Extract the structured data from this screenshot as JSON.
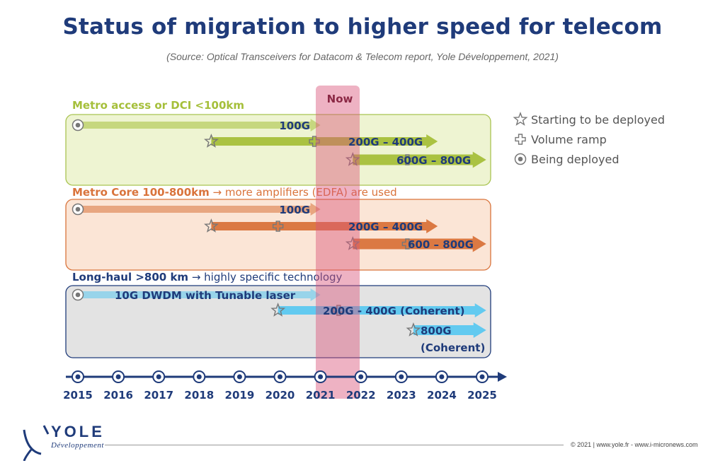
{
  "header": {
    "title": "Status of migration to higher speed for telecom",
    "source": "(Source: Optical Transceivers for Datacom & Telecom report, Yole Développement, 2021)"
  },
  "now_label": "Now",
  "legend": {
    "starting": "Starting to be deployed",
    "volume": "Volume ramp",
    "being": "Being deployed"
  },
  "sections": [
    {
      "id": "metro-access",
      "title_bold": "Metro access or DCI <100km",
      "title_rest": "",
      "color": "#a5bf3a",
      "box_fill": "#eef4d2",
      "box_stroke": "#a9c451",
      "rows": [
        {
          "label": "100G",
          "start": 2015,
          "end": 2021,
          "marks": [
            {
              "type": "being",
              "year": 2015
            }
          ]
        },
        {
          "label": "200G – 400G",
          "start": 2018.3,
          "end": 2023.9,
          "marks": [
            {
              "type": "starting",
              "year": 2018.3
            },
            {
              "type": "volume",
              "year": 2020.85
            }
          ]
        },
        {
          "label": "600G – 800G",
          "start": 2021.8,
          "end": 2025.1,
          "marks": [
            {
              "type": "starting",
              "year": 2021.8
            },
            {
              "type": "volume",
              "year": 2023.15
            }
          ]
        }
      ]
    },
    {
      "id": "metro-core",
      "title_bold": "Metro Core 100-800km",
      "title_rest": " → more amplifiers (EDFA) are used",
      "color": "#d9733b",
      "box_fill": "#fbe5d6",
      "box_stroke": "#d9733b",
      "rows": [
        {
          "label": "100G",
          "start": 2015,
          "end": 2021,
          "marks": [
            {
              "type": "being",
              "year": 2015
            }
          ]
        },
        {
          "label": "200G – 400G",
          "start": 2018.3,
          "end": 2023.9,
          "marks": [
            {
              "type": "starting",
              "year": 2018.3
            },
            {
              "type": "volume",
              "year": 2019.95
            }
          ]
        },
        {
          "label": "600 – 800G",
          "start": 2021.8,
          "end": 2025.1,
          "marks": [
            {
              "type": "starting",
              "year": 2021.8
            },
            {
              "type": "volume",
              "year": 2023.15
            }
          ]
        }
      ]
    },
    {
      "id": "long-haul",
      "title_bold": "Long-haul >800 km",
      "title_rest": " → highly specific technology",
      "color": "#5bc8f0",
      "box_fill": "#e3e3e3",
      "box_stroke": "#1f3b7a",
      "rows": [
        {
          "label": "10G DWDM with Tunable laser",
          "start": 2015,
          "end": 2021,
          "marks": [
            {
              "type": "being",
              "year": 2015
            }
          ]
        },
        {
          "label": "200G - 400G (Coherent)",
          "start": 2019.95,
          "end": 2025.1,
          "marks": [
            {
              "type": "starting",
              "year": 2019.95
            },
            {
              "type": "volume",
              "year": 2021.45
            }
          ]
        },
        {
          "label": "800G",
          "label2": "(Coherent)",
          "start": 2023.3,
          "end": 2025.1,
          "marks": [
            {
              "type": "starting",
              "year": 2023.3
            }
          ]
        }
      ]
    }
  ],
  "timeline": {
    "years": [
      "2015",
      "2016",
      "2017",
      "2018",
      "2019",
      "2020",
      "2021",
      "2022",
      "2023",
      "2024",
      "2025"
    ]
  },
  "logo": {
    "name": "YOLE",
    "sub": "Développement"
  },
  "footer": {
    "copyright": "© 2021 | www.yole.fr - www.i-micronews.com"
  },
  "colors": {
    "navy": "#1f3b7a",
    "now_band": "#d9547a",
    "now_text": "#8b2845"
  }
}
